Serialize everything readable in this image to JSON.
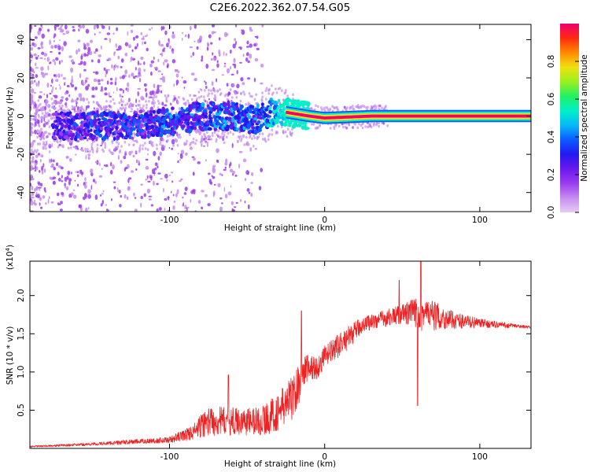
{
  "title": "C2E6.2022.362.07.54.G05",
  "colors": {
    "snr_line": "#ee2222",
    "axis": "#000000",
    "colormap": [
      "#e6ccf5",
      "#c58cf0",
      "#9b3cf0",
      "#6a18ee",
      "#2418f0",
      "#0a5cff",
      "#08b8f8",
      "#00f0c8",
      "#20f060",
      "#9af020",
      "#f0e010",
      "#ff8a00",
      "#ff2a10",
      "#f00070"
    ]
  },
  "chart_data": [
    {
      "id": "spectrogram",
      "type": "heatmap",
      "xlabel": "Height of straight line (km)",
      "ylabel": "Frequency (Hz)",
      "xlim": [
        -190,
        133
      ],
      "ylim": [
        -50,
        48
      ],
      "xticks": [
        -100,
        0,
        100
      ],
      "yticks": [
        -40,
        -20,
        0,
        20,
        40
      ],
      "ridge": [
        {
          "x": -170,
          "f": -5,
          "amp": 0.3
        },
        {
          "x": -150,
          "f": -5,
          "amp": 0.35
        },
        {
          "x": -125,
          "f": -5,
          "amp": 0.35
        },
        {
          "x": -100,
          "f": -3,
          "amp": 0.4
        },
        {
          "x": -80,
          "f": 0,
          "amp": 0.4
        },
        {
          "x": -60,
          "f": 0,
          "amp": 0.4
        },
        {
          "x": -45,
          "f": -2,
          "amp": 0.4
        },
        {
          "x": -35,
          "f": 2,
          "amp": 0.5
        },
        {
          "x": -25,
          "f": 2,
          "amp": 0.7
        },
        {
          "x": -10,
          "f": 0,
          "amp": 0.9
        },
        {
          "x": 0,
          "f": -1,
          "amp": 1.0
        },
        {
          "x": 30,
          "f": 0,
          "amp": 1.0
        },
        {
          "x": 60,
          "f": 0,
          "amp": 1.0
        },
        {
          "x": 100,
          "f": 0,
          "amp": 1.0
        },
        {
          "x": 133,
          "f": 0,
          "amp": 1.0
        }
      ],
      "colorbar": {
        "label": "Normalized spectral amplitude",
        "range": [
          0.0,
          1.0
        ],
        "ticks": [
          0.0,
          0.2,
          0.4,
          0.6,
          0.8
        ],
        "tick_labels": [
          "0.0",
          "0.2",
          "0.4",
          "0.6",
          "0.8"
        ]
      }
    },
    {
      "id": "snr",
      "type": "line",
      "xlabel": "Height of straight line (km)",
      "ylabel": "SNR (10 * v/v)",
      "y_multiplier_label": "(x10",
      "y_multiplier_exp": "4",
      "y_multiplier_close": ")",
      "xlim": [
        -190,
        133
      ],
      "ylim": [
        0,
        24500
      ],
      "xticks": [
        -100,
        0,
        100
      ],
      "yticks": [
        5000,
        10000,
        15000,
        20000
      ],
      "ytick_labels": [
        "0.5",
        "1.0",
        "1.5",
        "2.0"
      ],
      "envelope": [
        {
          "x": -190,
          "base": 200,
          "spread": 200
        },
        {
          "x": -150,
          "base": 500,
          "spread": 400
        },
        {
          "x": -100,
          "base": 1000,
          "spread": 800
        },
        {
          "x": -85,
          "base": 1800,
          "spread": 2000
        },
        {
          "x": -75,
          "base": 3000,
          "spread": 4000
        },
        {
          "x": -55,
          "base": 3000,
          "spread": 3500
        },
        {
          "x": -40,
          "base": 3000,
          "spread": 4000
        },
        {
          "x": -30,
          "base": 4000,
          "spread": 5000
        },
        {
          "x": -20,
          "base": 6000,
          "spread": 6000
        },
        {
          "x": -12,
          "base": 10000,
          "spread": 4000
        },
        {
          "x": -5,
          "base": 10000,
          "spread": 3000
        },
        {
          "x": 0,
          "base": 11500,
          "spread": 3000
        },
        {
          "x": 15,
          "base": 14000,
          "spread": 3000
        },
        {
          "x": 25,
          "base": 16000,
          "spread": 2000
        },
        {
          "x": 50,
          "base": 17200,
          "spread": 2500
        },
        {
          "x": 62,
          "base": 17000,
          "spread": 5000
        },
        {
          "x": 80,
          "base": 16500,
          "spread": 2500
        },
        {
          "x": 100,
          "base": 16200,
          "spread": 1200
        },
        {
          "x": 133,
          "base": 15800,
          "spread": 300
        }
      ],
      "peaks": [
        {
          "x": 62,
          "y": 24500
        },
        {
          "x": 60,
          "y": 5600
        },
        {
          "x": -15,
          "y": 18000
        },
        {
          "x": -62,
          "y": 9600
        },
        {
          "x": 48,
          "y": 22000
        }
      ]
    }
  ]
}
